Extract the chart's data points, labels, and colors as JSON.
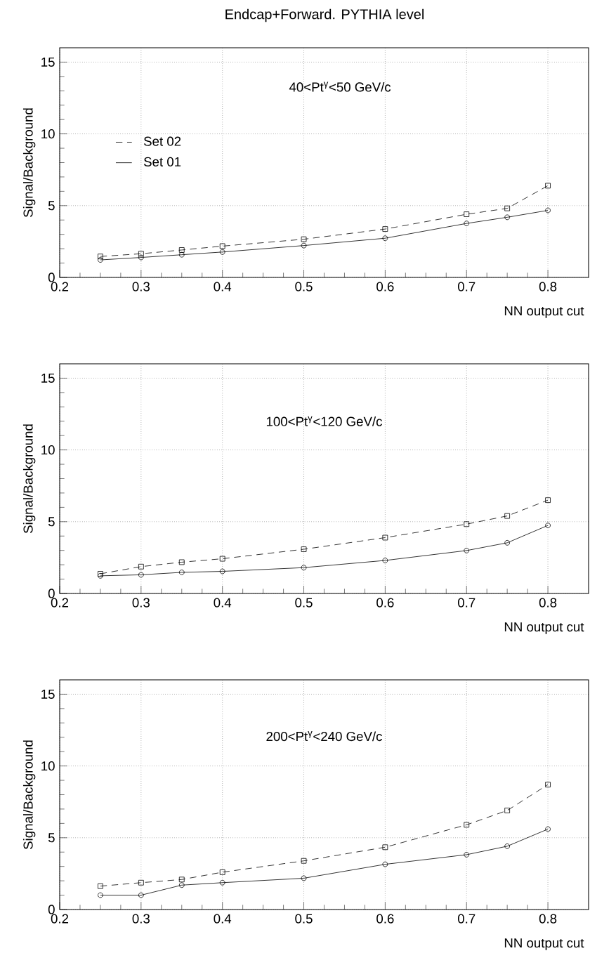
{
  "chart_data": [
    {
      "type": "line",
      "title": "Endcap+Forward. PYTHIA level",
      "xlabel": "NN output cut",
      "ylabel": "Signal/Background",
      "annotations": [
        "40<Pt$^{γ}$<50 GeV/c"
      ],
      "x": [
        0.25,
        0.3,
        0.35,
        0.4,
        0.5,
        0.6,
        0.7,
        0.75,
        0.8
      ],
      "xlim": [
        0.2,
        0.85
      ],
      "xticks": [
        0.2,
        0.3,
        0.4,
        0.5,
        0.6,
        0.7,
        0.8
      ],
      "ylim": [
        0,
        16
      ],
      "yticks": [
        0,
        5,
        10,
        15
      ],
      "grid": true,
      "legend": "left",
      "series": [
        {
          "name": "Set 02",
          "color": "#000000",
          "marker": "square",
          "line_style": "dashed",
          "values": [
            1.46,
            1.65,
            1.91,
            2.18,
            2.66,
            3.37,
            4.4,
            4.81,
            6.39
          ]
        },
        {
          "name": "Set 01",
          "color": "#000000",
          "marker": "circle",
          "line_style": "solid",
          "values": [
            1.22,
            1.39,
            1.58,
            1.77,
            2.22,
            2.73,
            3.76,
            4.19,
            4.67
          ]
        }
      ]
    },
    {
      "type": "line",
      "xlabel": "NN output cut",
      "ylabel": "Signal/Background",
      "annotations": [
        "100<Pt$^{γ}$<120 GeV/c"
      ],
      "x": [
        0.25,
        0.3,
        0.35,
        0.4,
        0.5,
        0.6,
        0.7,
        0.75,
        0.8
      ],
      "xlim": [
        0.2,
        0.85
      ],
      "xticks": [
        0.2,
        0.3,
        0.4,
        0.5,
        0.6,
        0.7,
        0.8
      ],
      "ylim": [
        0,
        16
      ],
      "yticks": [
        0,
        5,
        10,
        15
      ],
      "grid": true,
      "series": [
        {
          "color": "#000000",
          "marker": "square",
          "line_style": "dashed",
          "values": [
            1.37,
            1.87,
            2.18,
            2.42,
            3.08,
            3.89,
            4.83,
            5.4,
            6.5
          ]
        },
        {
          "color": "#000000",
          "marker": "circle",
          "line_style": "solid",
          "values": [
            1.23,
            1.3,
            1.47,
            1.54,
            1.8,
            2.3,
            2.99,
            3.53,
            4.74
          ]
        }
      ]
    },
    {
      "type": "line",
      "xlabel": "NN output cut",
      "ylabel": "Signal/Background",
      "annotations": [
        "200<Pt$^{γ}$<240 GeV/c"
      ],
      "x": [
        0.25,
        0.3,
        0.35,
        0.4,
        0.5,
        0.6,
        0.7,
        0.75,
        0.8
      ],
      "xlim": [
        0.2,
        0.85
      ],
      "xticks": [
        0.2,
        0.3,
        0.4,
        0.5,
        0.6,
        0.7,
        0.8
      ],
      "ylim": [
        0,
        16
      ],
      "yticks": [
        0,
        5,
        10,
        15
      ],
      "grid": true,
      "series": [
        {
          "color": "#000000",
          "marker": "square",
          "line_style": "dashed",
          "values": [
            1.63,
            1.87,
            2.09,
            2.6,
            3.39,
            4.34,
            5.9,
            6.9,
            8.7
          ]
        },
        {
          "color": "#000000",
          "marker": "circle",
          "line_style": "solid",
          "values": [
            1.0,
            1.0,
            1.7,
            1.87,
            2.18,
            3.15,
            3.82,
            4.41,
            5.6
          ]
        }
      ]
    }
  ]
}
